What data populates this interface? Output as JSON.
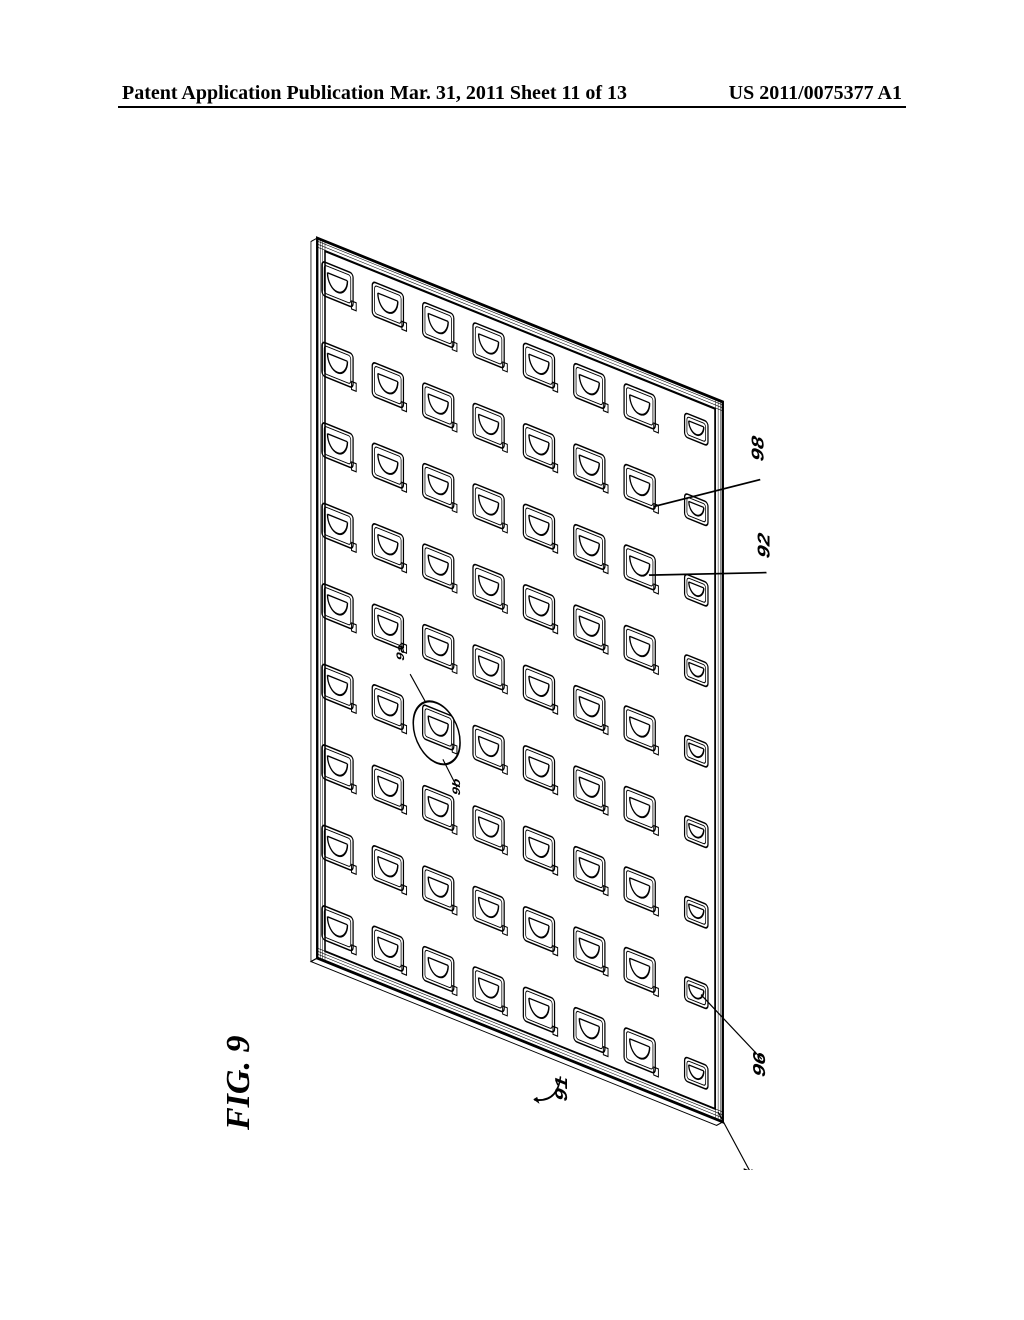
{
  "header": {
    "left": "Patent Application Publication",
    "mid": "Mar. 31, 2011  Sheet 11 of 13",
    "right": "US 2011/0075377 A1"
  },
  "figure": {
    "label": "FIG. 9",
    "board_ref": "91",
    "refs": {
      "r92": "92",
      "r94": "94",
      "r96": "96",
      "r98": "98",
      "detail_a": "9a",
      "detail_b": "9b"
    },
    "layout": {
      "rows": 8,
      "cols": 9,
      "board_w": 720,
      "board_h": 520,
      "skew_deg": -22,
      "rotate_deg": 90
    },
    "style": {
      "stroke": "#000000",
      "stroke_w": 2,
      "hatch_gap": 3,
      "bg": "#ffffff"
    }
  }
}
